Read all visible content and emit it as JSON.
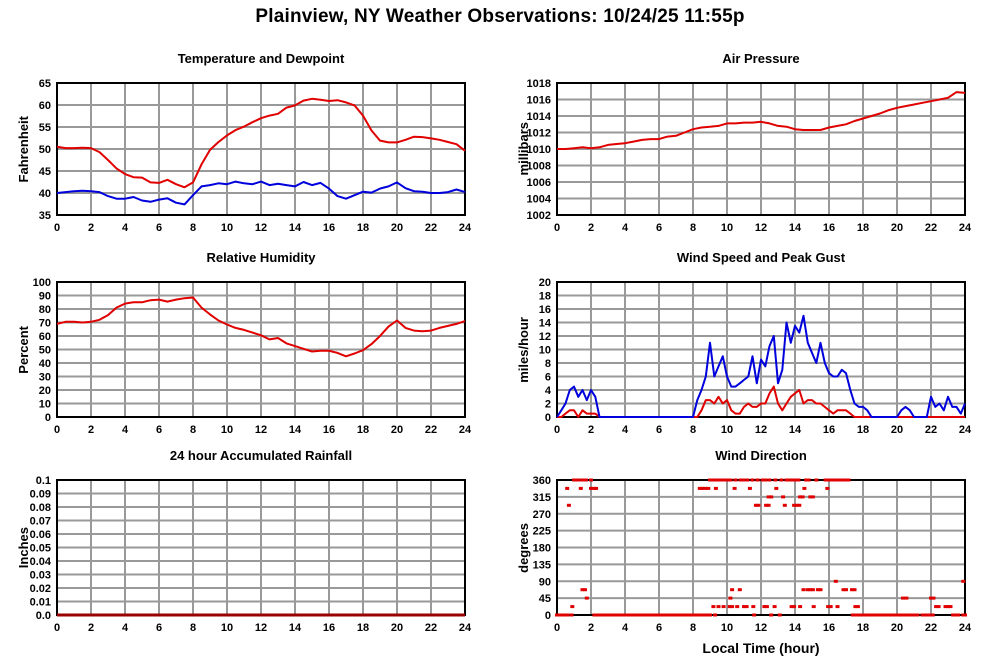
{
  "page_title": "Plainview, NY Weather Observations: 10/24/25 11:55p",
  "chart_data": [
    {
      "id": "temperature_dewpoint",
      "type": "line",
      "title": "Temperature and Dewpoint",
      "ylabel": "Fahrenheit",
      "ylim": [
        35,
        65
      ],
      "xlim": [
        0,
        24
      ],
      "yticks": [
        "65",
        "60",
        "55",
        "50",
        "45",
        "40",
        "35"
      ],
      "xticks": [
        "0",
        "2",
        "4",
        "6",
        "8",
        "10",
        "12",
        "14",
        "16",
        "18",
        "20",
        "22",
        "24"
      ],
      "grid": true,
      "x_step": 0.5,
      "series": [
        {
          "name": "Temperature",
          "color": "#e00000",
          "values": [
            50.5,
            50.2,
            50.2,
            50.3,
            50.2,
            49.3,
            47.5,
            45.6,
            44.3,
            43.6,
            43.5,
            42.4,
            42.3,
            43.0,
            42.0,
            41.3,
            42.4,
            46.5,
            49.8,
            51.6,
            53.1,
            54.3,
            55.1,
            56.1,
            57.0,
            57.6,
            58.0,
            59.4,
            59.9,
            61.0,
            61.4,
            61.2,
            60.9,
            61.1,
            60.6,
            59.9,
            57.6,
            54.2,
            51.9,
            51.5,
            51.5,
            52.1,
            52.8,
            52.7,
            52.4,
            52.1,
            51.6,
            51.1,
            49.6
          ]
        },
        {
          "name": "Dewpoint",
          "color": "#0000dd",
          "values": [
            40.0,
            40.2,
            40.4,
            40.5,
            40.4,
            40.2,
            39.3,
            38.7,
            38.7,
            39.1,
            38.3,
            38.0,
            38.5,
            38.8,
            37.8,
            37.4,
            39.5,
            41.5,
            41.8,
            42.2,
            42.0,
            42.6,
            42.2,
            42.0,
            42.6,
            41.8,
            42.1,
            41.8,
            41.5,
            42.5,
            41.8,
            42.3,
            41.0,
            39.3,
            38.7,
            39.5,
            40.3,
            40.1,
            41.0,
            41.5,
            42.4,
            41.1,
            40.4,
            40.3,
            40.0,
            40.0,
            40.2,
            40.8,
            40.2
          ]
        }
      ]
    },
    {
      "id": "air_pressure",
      "type": "line",
      "title": "Air Pressure",
      "ylabel": "millibars",
      "ylim": [
        1002,
        1018
      ],
      "xlim": [
        0,
        24
      ],
      "yticks": [
        "1018",
        "1016",
        "1014",
        "1012",
        "1010",
        "1008",
        "1006",
        "1004",
        "1002"
      ],
      "xticks": [
        "0",
        "2",
        "4",
        "6",
        "8",
        "10",
        "12",
        "14",
        "16",
        "18",
        "20",
        "22",
        "24"
      ],
      "grid": true,
      "x_step": 0.5,
      "series": [
        {
          "name": "Air Pressure",
          "color": "#e00000",
          "values": [
            1010.0,
            1010.0,
            1010.1,
            1010.2,
            1010.1,
            1010.2,
            1010.5,
            1010.6,
            1010.7,
            1010.9,
            1011.1,
            1011.2,
            1011.2,
            1011.5,
            1011.6,
            1012.0,
            1012.4,
            1012.6,
            1012.7,
            1012.8,
            1013.1,
            1013.1,
            1013.2,
            1013.2,
            1013.3,
            1013.1,
            1012.8,
            1012.7,
            1012.4,
            1012.3,
            1012.3,
            1012.3,
            1012.6,
            1012.8,
            1013.0,
            1013.4,
            1013.7,
            1014.0,
            1014.3,
            1014.7,
            1015.0,
            1015.2,
            1015.4,
            1015.6,
            1015.8,
            1016.0,
            1016.2,
            1016.9,
            1016.8
          ]
        }
      ]
    },
    {
      "id": "relative_humidity",
      "type": "line",
      "title": "Relative Humidity",
      "ylabel": "Percent",
      "ylim": [
        0,
        100
      ],
      "xlim": [
        0,
        24
      ],
      "yticks": [
        "100",
        "90",
        "80",
        "70",
        "60",
        "50",
        "40",
        "30",
        "20",
        "10",
        "0"
      ],
      "xticks": [
        "0",
        "2",
        "4",
        "6",
        "8",
        "10",
        "12",
        "14",
        "16",
        "18",
        "20",
        "22",
        "24"
      ],
      "grid": true,
      "x_step": 0.5,
      "series": [
        {
          "name": "Relative Humidity",
          "color": "#e00000",
          "values": [
            69,
            70.5,
            70.5,
            70,
            70.5,
            72,
            75.5,
            81,
            84,
            85,
            85,
            86.5,
            87,
            85.5,
            87,
            88,
            88.5,
            81,
            76,
            71.5,
            68.5,
            66,
            64.5,
            62.5,
            60.5,
            57.5,
            58.5,
            54.5,
            52.5,
            50.5,
            48.5,
            49,
            49,
            47.5,
            45,
            47,
            49.5,
            54,
            60,
            67,
            71.5,
            66,
            64,
            63.5,
            64,
            66,
            67.5,
            69,
            71
          ]
        }
      ]
    },
    {
      "id": "wind_speed_gust",
      "type": "line",
      "title": "Wind Speed and Peak Gust",
      "ylabel": "miles/hour",
      "ylim": [
        0,
        20
      ],
      "xlim": [
        0,
        24
      ],
      "yticks": [
        "20",
        "18",
        "16",
        "14",
        "12",
        "10",
        "8",
        "6",
        "4",
        "2",
        "0"
      ],
      "xticks": [
        "0",
        "2",
        "4",
        "6",
        "8",
        "10",
        "12",
        "14",
        "16",
        "18",
        "20",
        "22",
        "24"
      ],
      "grid": true,
      "x_step": 0.25,
      "series": [
        {
          "name": "Wind Speed",
          "color": "#e00000",
          "values": [
            0,
            0,
            0.5,
            1,
            1,
            0,
            1,
            0.5,
            0.5,
            0.5,
            0,
            0,
            0,
            0,
            0,
            0,
            0,
            0,
            0,
            0,
            0,
            0,
            0,
            0,
            0,
            0,
            0,
            0,
            0,
            0,
            0,
            0,
            0,
            0,
            1,
            2.5,
            2.5,
            2,
            3,
            2,
            2.5,
            1,
            0.5,
            0.5,
            1.5,
            2,
            1.5,
            1.5,
            2,
            2,
            3.5,
            4.5,
            2,
            1,
            2,
            3,
            3.5,
            4,
            2,
            2.5,
            2.5,
            2,
            2,
            1.5,
            1,
            0.5,
            1,
            1,
            1,
            0.5,
            0,
            0,
            0,
            0,
            0,
            0,
            0,
            0,
            0,
            0,
            0,
            0,
            0,
            0,
            0,
            0,
            0,
            0,
            0,
            0,
            0,
            0,
            0,
            0,
            0,
            0,
            0
          ]
        },
        {
          "name": "Peak Gust",
          "color": "#0000dd",
          "values": [
            0,
            1,
            2,
            4,
            4.5,
            3,
            4,
            2.5,
            4,
            3,
            0,
            0,
            0,
            0,
            0,
            0,
            0,
            0,
            0,
            0,
            0,
            0,
            0,
            0,
            0,
            0,
            0,
            0,
            0,
            0,
            0,
            0,
            0,
            2.5,
            4,
            6,
            11,
            6,
            7.5,
            9,
            6,
            4.5,
            4.5,
            5,
            5.5,
            6,
            9,
            5,
            8.5,
            7.5,
            10.5,
            12,
            5,
            7,
            14,
            11,
            13.5,
            12.5,
            15,
            11,
            9.5,
            8,
            11,
            8,
            6.5,
            6,
            6,
            7,
            6.5,
            4,
            2,
            1.5,
            1.5,
            1,
            0,
            0,
            0,
            0,
            0,
            0,
            0,
            1,
            1.5,
            1,
            0,
            0,
            0,
            0,
            3,
            1.5,
            2,
            1,
            3,
            1.5,
            1.5,
            0.5,
            2
          ]
        }
      ]
    },
    {
      "id": "rainfall",
      "type": "line",
      "title": "24 hour Accumulated Rainfall",
      "ylabel": "Inches",
      "ylim": [
        0,
        0.1
      ],
      "xlim": [
        0,
        24
      ],
      "yticks": [
        "0.1",
        "0.09",
        "0.08",
        "0.07",
        "0.06",
        "0.05",
        "0.04",
        "0.03",
        "0.02",
        "0.01",
        "0.0"
      ],
      "xticks": [
        "0",
        "2",
        "4",
        "6",
        "8",
        "10",
        "12",
        "14",
        "16",
        "18",
        "20",
        "22",
        "24"
      ],
      "grid": true,
      "x_step": 24,
      "series": [
        {
          "name": "Accumulated Rainfall",
          "color": "#990000",
          "width": 3,
          "values": [
            0,
            0
          ]
        }
      ]
    },
    {
      "id": "wind_direction",
      "type": "scatter",
      "title": "Wind Direction",
      "ylabel": "degrees",
      "xlabel": "Local Time (hour)",
      "ylim": [
        0,
        360
      ],
      "xlim": [
        0,
        24
      ],
      "yticks": [
        "360",
        "315",
        "270",
        "225",
        "180",
        "135",
        "90",
        "45",
        "0"
      ],
      "xticks": [
        "0",
        "2",
        "4",
        "6",
        "8",
        "10",
        "12",
        "14",
        "16",
        "18",
        "20",
        "22",
        "24"
      ],
      "grid": true,
      "point_color": "#e00000",
      "groups": [
        {
          "deg": 360,
          "hours": [
            1.0,
            1.15,
            1.25,
            1.5,
            1.6,
            1.7,
            2.0,
            9.0,
            9.15,
            9.3,
            9.45,
            9.6,
            9.75,
            9.9,
            10.05,
            10.2,
            10.5,
            10.8,
            10.95,
            11.2,
            11.5,
            11.8,
            12.1,
            12.25,
            12.5,
            12.85,
            13.2,
            13.5,
            13.65,
            13.85,
            14.0,
            14.2,
            14.65,
            14.8,
            15.25,
            15.8,
            15.95,
            16.1,
            16.25,
            16.4,
            16.55,
            16.7,
            16.85,
            17.0,
            17.15
          ]
        },
        {
          "deg": 337.5,
          "hours": [
            0.6,
            1.4,
            2.0,
            2.15,
            2.3,
            8.4,
            8.55,
            8.7,
            8.9,
            9.35,
            10.45,
            11.35,
            12.9,
            14.55,
            15.9
          ]
        },
        {
          "deg": 315,
          "hours": [
            12.45,
            12.6,
            13.3,
            14.3,
            14.45,
            14.9,
            15.05
          ]
        },
        {
          "deg": 292.5,
          "hours": [
            0.7,
            11.7,
            11.85,
            12.3,
            12.45,
            13.4,
            13.95,
            14.1,
            14.25
          ]
        },
        {
          "deg": 90,
          "hours": [
            16.4,
            23.9
          ]
        },
        {
          "deg": 67.5,
          "hours": [
            1.5,
            1.65,
            10.3,
            10.75,
            14.5,
            14.75,
            14.9,
            15.05,
            15.35,
            15.5,
            16.85,
            17.0,
            17.35,
            17.5
          ]
        },
        {
          "deg": 45,
          "hours": [
            1.75,
            10.2,
            20.35,
            20.55,
            22.0,
            22.15
          ]
        },
        {
          "deg": 22.5,
          "hours": [
            0.9,
            9.2,
            9.5,
            9.8,
            10.15,
            10.3,
            10.6,
            11.0,
            11.15,
            11.55,
            12.2,
            12.35,
            12.8,
            13.8,
            13.95,
            14.3,
            15.1,
            15.95,
            16.1,
            16.5,
            17.55,
            17.7,
            22.3,
            22.45,
            22.85,
            23.0,
            23.15
          ]
        },
        {
          "deg": 0,
          "hours": [
            0.0,
            0.15,
            0.3,
            0.45,
            0.6,
            0.85,
            2.2,
            2.4,
            2.6,
            2.8,
            3.0,
            3.2,
            3.4,
            3.6,
            3.8,
            4.0,
            4.2,
            4.4,
            4.6,
            4.8,
            5.0,
            5.2,
            5.4,
            5.6,
            5.8,
            6.0,
            6.2,
            6.4,
            6.6,
            6.8,
            7.0,
            7.2,
            7.4,
            7.6,
            7.8,
            8.0,
            8.2,
            8.4,
            8.6,
            8.8,
            9.0,
            9.3,
            11.6,
            12.6,
            13.1,
            17.4,
            17.6,
            17.8,
            18.0,
            18.2,
            18.4,
            18.6,
            18.8,
            19.0,
            19.2,
            19.4,
            19.6,
            19.8,
            20.0,
            20.2,
            20.4,
            20.6,
            20.8,
            21.0,
            21.2,
            21.5,
            21.7,
            21.9,
            22.1,
            23.3,
            23.45,
            23.6,
            23.9,
            24.0
          ]
        }
      ]
    }
  ]
}
